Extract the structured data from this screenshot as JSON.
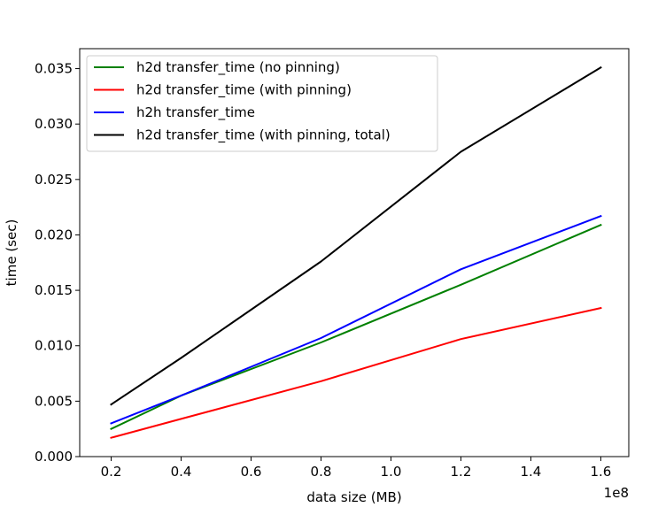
{
  "chart_data": {
    "type": "line",
    "title": "",
    "xlabel": "data size (MB)",
    "ylabel": "time (sec)",
    "x_offset_label": "1e8",
    "x": [
      0.2,
      0.4,
      0.8,
      1.2,
      1.6
    ],
    "xlim": [
      0.11,
      1.68
    ],
    "ylim": [
      0.0,
      0.0368
    ],
    "xticks": [
      0.2,
      0.4,
      0.6,
      0.8,
      1.0,
      1.2,
      1.4,
      1.6
    ],
    "xtick_labels": [
      "0.2",
      "0.4",
      "0.6",
      "0.8",
      "1.0",
      "1.2",
      "1.4",
      "1.6"
    ],
    "yticks": [
      0.0,
      0.005,
      0.01,
      0.015,
      0.02,
      0.025,
      0.03,
      0.035
    ],
    "ytick_labels": [
      "0.000",
      "0.005",
      "0.010",
      "0.015",
      "0.020",
      "0.025",
      "0.030",
      "0.035"
    ],
    "grid": false,
    "legend_position": "top-left",
    "series": [
      {
        "name": "h2d transfer_time (no pinning)",
        "color": "#008000",
        "values": [
          0.0025,
          0.0055,
          0.0103,
          0.0155,
          0.0209
        ]
      },
      {
        "name": "h2d transfer_time (with pinning)",
        "color": "#ff0000",
        "values": [
          0.0017,
          0.0034,
          0.0068,
          0.0106,
          0.0134
        ]
      },
      {
        "name": "h2h transfer_time",
        "color": "#0000ff",
        "values": [
          0.003,
          0.0055,
          0.0107,
          0.0169,
          0.0217
        ]
      },
      {
        "name": "h2d transfer_time (with pinning, total)",
        "color": "#000000",
        "values": [
          0.0047,
          0.0089,
          0.0176,
          0.0275,
          0.0351
        ]
      }
    ]
  }
}
